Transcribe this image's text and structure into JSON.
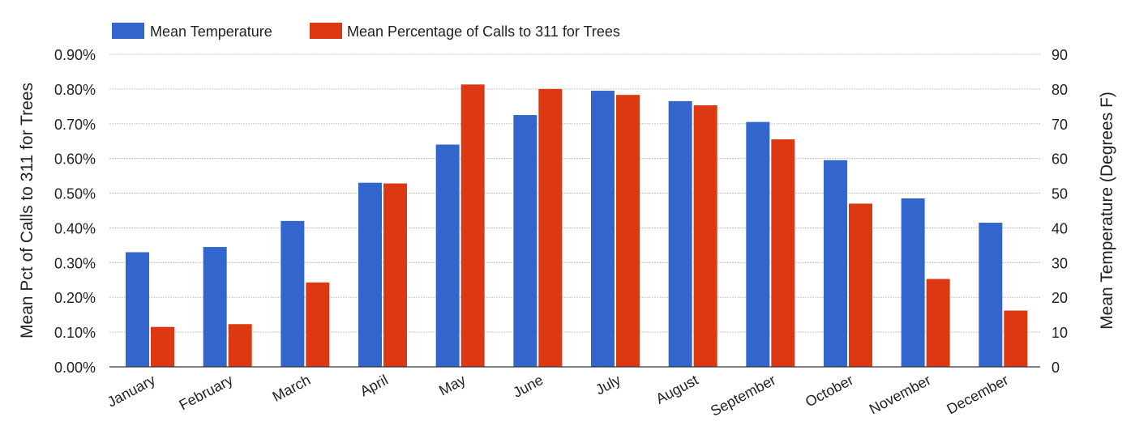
{
  "chart_data": {
    "type": "bar",
    "title": "",
    "categories": [
      "January",
      "February",
      "March",
      "April",
      "May",
      "June",
      "July",
      "August",
      "September",
      "October",
      "November",
      "December"
    ],
    "series": [
      {
        "name": "Mean Temperature",
        "axis": "right",
        "color": "#3366cc",
        "values": [
          33,
          34.5,
          42,
          53,
          64,
          72.5,
          79.5,
          76.5,
          70.5,
          59.5,
          48.5,
          41.5
        ]
      },
      {
        "name": "Mean Percentage of Calls to 311 for Trees",
        "axis": "left",
        "color": "#dc3912",
        "values": [
          0.115,
          0.123,
          0.243,
          0.528,
          0.813,
          0.8,
          0.783,
          0.753,
          0.655,
          0.47,
          0.253,
          0.162
        ]
      }
    ],
    "y_left": {
      "label": "Mean Pct of Calls to 311 for Trees",
      "range": [
        0,
        0.9
      ],
      "ticks": [
        "0.00%",
        "0.10%",
        "0.20%",
        "0.30%",
        "0.40%",
        "0.50%",
        "0.60%",
        "0.70%",
        "0.80%",
        "0.90%"
      ]
    },
    "y_right": {
      "label": "Mean Temperature (Degrees F)",
      "range": [
        0,
        90
      ],
      "ticks": [
        "0",
        "10",
        "20",
        "30",
        "40",
        "50",
        "60",
        "70",
        "80",
        "90"
      ]
    },
    "grid": true,
    "legend_position": "top-left"
  }
}
